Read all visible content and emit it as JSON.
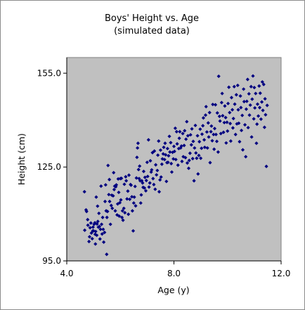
{
  "chart_data": {
    "type": "scatter",
    "title": "Boys' Height vs. Age",
    "subtitle": "(simulated data)",
    "xlabel": "Age (y)",
    "ylabel": "Height (cm)",
    "xlim": [
      4.0,
      12.0
    ],
    "ylim": [
      95.0,
      160.0
    ],
    "x_ticks": [
      {
        "value": 4.0,
        "label": "4.0"
      },
      {
        "value": 8.0,
        "label": "8.0"
      },
      {
        "value": 12.0,
        "label": "12.0"
      }
    ],
    "y_ticks": [
      {
        "value": 95.0,
        "label": "95.0"
      },
      {
        "value": 125.0,
        "label": "125.0"
      },
      {
        "value": 155.0,
        "label": "155.0"
      }
    ],
    "grid": false,
    "legend": "none",
    "colors": {
      "plot_background": "#c0c0c0",
      "marker": "#000080"
    },
    "series": [
      {
        "points": [
          [
            4.66,
            117.1
          ],
          [
            4.67,
            104.8
          ],
          [
            4.72,
            111.3
          ],
          [
            4.74,
            110.8
          ],
          [
            4.78,
            108.2
          ],
          [
            4.79,
            106.4
          ],
          [
            4.83,
            101.2
          ],
          [
            4.85,
            102.7
          ],
          [
            4.87,
            105.6
          ],
          [
            4.9,
            107.1
          ],
          [
            4.92,
            103.9
          ],
          [
            4.95,
            102.1
          ],
          [
            4.97,
            104.6
          ],
          [
            4.98,
            105.8
          ],
          [
            5.0,
            104.6
          ],
          [
            5.02,
            106.7
          ],
          [
            5.05,
            107.2
          ],
          [
            5.06,
            103.5
          ],
          [
            5.07,
            100.4
          ],
          [
            5.08,
            104.4
          ],
          [
            5.1,
            115.4
          ],
          [
            5.12,
            103.2
          ],
          [
            5.13,
            106.8
          ],
          [
            5.15,
            112.5
          ],
          [
            5.16,
            107.6
          ],
          [
            5.18,
            105.8
          ],
          [
            5.2,
            110.2
          ],
          [
            5.22,
            106.0
          ],
          [
            5.24,
            102.0
          ],
          [
            5.26,
            105.1
          ],
          [
            5.28,
            118.9
          ],
          [
            5.3,
            106.7
          ],
          [
            5.32,
            103.6
          ],
          [
            5.34,
            108.9
          ],
          [
            5.36,
            105.1
          ],
          [
            5.38,
            101.0
          ],
          [
            5.41,
            104.1
          ],
          [
            5.43,
            114.0
          ],
          [
            5.45,
            119.3
          ],
          [
            5.47,
            111.0
          ],
          [
            5.49,
            97.1
          ],
          [
            5.5,
            108.9
          ],
          [
            5.52,
            110.8
          ],
          [
            5.54,
            125.5
          ],
          [
            5.57,
            116.2
          ],
          [
            5.59,
            121.0
          ],
          [
            5.6,
            114.0
          ],
          [
            5.63,
            106.7
          ],
          [
            5.66,
            112.7
          ],
          [
            5.68,
            116.0
          ],
          [
            5.7,
            111.8
          ],
          [
            5.73,
            115.8
          ],
          [
            5.75,
            123.2
          ],
          [
            5.77,
            117.8
          ],
          [
            5.79,
            118.9
          ],
          [
            5.81,
            111.0
          ],
          [
            5.83,
            118.7
          ],
          [
            5.85,
            119.3
          ],
          [
            5.88,
            109.7
          ],
          [
            5.9,
            113.2
          ],
          [
            5.92,
            121.2
          ],
          [
            5.94,
            116.9
          ],
          [
            5.96,
            109.3
          ],
          [
            5.98,
            113.6
          ],
          [
            6.0,
            121.3
          ],
          [
            6.02,
            114.5
          ],
          [
            6.04,
            121.4
          ],
          [
            6.06,
            108.9
          ],
          [
            6.08,
            111.0
          ],
          [
            6.1,
            108.0
          ],
          [
            6.13,
            111.8
          ],
          [
            6.15,
            119.5
          ],
          [
            6.17,
            110.4
          ],
          [
            6.2,
            121.9
          ],
          [
            6.22,
            120.6
          ],
          [
            6.25,
            114.8
          ],
          [
            6.28,
            117.3
          ],
          [
            6.3,
            109.9
          ],
          [
            6.32,
            122.4
          ],
          [
            6.35,
            114.7
          ],
          [
            6.38,
            119.4
          ],
          [
            6.4,
            119.2
          ],
          [
            6.43,
            115.5
          ],
          [
            6.45,
            111.0
          ],
          [
            6.48,
            104.6
          ],
          [
            6.5,
            113.5
          ],
          [
            6.52,
            115.4
          ],
          [
            6.55,
            118.8
          ],
          [
            6.57,
            112.6
          ],
          [
            6.6,
            121.5
          ],
          [
            6.62,
            128.1
          ],
          [
            6.64,
            131.1
          ],
          [
            6.66,
            132.6
          ],
          [
            6.68,
            124.2
          ],
          [
            6.7,
            121.3
          ],
          [
            6.72,
            125.3
          ],
          [
            6.74,
            120.6
          ],
          [
            6.76,
            113.5
          ],
          [
            6.78,
            116.1
          ],
          [
            6.8,
            120.6
          ],
          [
            6.83,
            119.9
          ],
          [
            6.85,
            118.5
          ],
          [
            6.87,
            123.6
          ],
          [
            6.9,
            118.3
          ],
          [
            6.92,
            121.7
          ],
          [
            6.95,
            117.4
          ],
          [
            6.97,
            120.7
          ],
          [
            7.0,
            126.5
          ],
          [
            7.02,
            122.0
          ],
          [
            7.05,
            133.7
          ],
          [
            7.07,
            118.6
          ],
          [
            7.1,
            119.9
          ],
          [
            7.12,
            127.0
          ],
          [
            7.15,
            123.4
          ],
          [
            7.17,
            124.1
          ],
          [
            7.2,
            129.6
          ],
          [
            7.22,
            121.3
          ],
          [
            7.25,
            119.4
          ],
          [
            7.27,
            130.1
          ],
          [
            7.3,
            117.9
          ],
          [
            7.32,
            125.7
          ],
          [
            7.35,
            122.5
          ],
          [
            7.38,
            123.9
          ],
          [
            7.4,
            128.8
          ],
          [
            7.43,
            133.3
          ],
          [
            7.45,
            117.1
          ],
          [
            7.48,
            120.9
          ],
          [
            7.5,
            130.4
          ],
          [
            7.52,
            121.8
          ],
          [
            7.55,
            125.9
          ],
          [
            7.57,
            127.6
          ],
          [
            7.6,
            129.2
          ],
          [
            7.62,
            131.3
          ],
          [
            7.65,
            127.4
          ],
          [
            7.67,
            132.6
          ],
          [
            7.69,
            128.9
          ],
          [
            7.72,
            120.4
          ],
          [
            7.74,
            126.4
          ],
          [
            7.76,
            130.9
          ],
          [
            7.78,
            126.5
          ],
          [
            7.8,
            128.6
          ],
          [
            7.83,
            134.8
          ],
          [
            7.85,
            129.8
          ],
          [
            7.88,
            132.8
          ],
          [
            7.9,
            126.1
          ],
          [
            7.92,
            123.4
          ],
          [
            7.95,
            129.7
          ],
          [
            7.98,
            127.6
          ],
          [
            8.0,
            131.6
          ],
          [
            8.02,
            130.0
          ],
          [
            8.05,
            137.4
          ],
          [
            8.07,
            127.4
          ],
          [
            8.1,
            136.3
          ],
          [
            8.12,
            132.4
          ],
          [
            8.15,
            125.6
          ],
          [
            8.18,
            130.9
          ],
          [
            8.2,
            134.2
          ],
          [
            8.22,
            136.3
          ],
          [
            8.25,
            131.1
          ],
          [
            8.28,
            131.7
          ],
          [
            8.3,
            126.8
          ],
          [
            8.33,
            135.7
          ],
          [
            8.35,
            128.3
          ],
          [
            8.38,
            131.9
          ],
          [
            8.4,
            136.6
          ],
          [
            8.43,
            128.0
          ],
          [
            8.45,
            133.9
          ],
          [
            8.48,
            139.5
          ],
          [
            8.5,
            126.3
          ],
          [
            8.52,
            135.0
          ],
          [
            8.55,
            124.6
          ],
          [
            8.57,
            127.1
          ],
          [
            8.6,
            129.4
          ],
          [
            8.62,
            135.3
          ],
          [
            8.65,
            132.1
          ],
          [
            8.67,
            137.2
          ],
          [
            8.7,
            127.7
          ],
          [
            8.72,
            133.2
          ],
          [
            8.75,
            120.6
          ],
          [
            8.77,
            131.1
          ],
          [
            8.8,
            138.3
          ],
          [
            8.82,
            129.5
          ],
          [
            8.85,
            127.8
          ],
          [
            8.88,
            135.0
          ],
          [
            8.9,
            122.8
          ],
          [
            8.93,
            128.7
          ],
          [
            8.95,
            133.1
          ],
          [
            8.98,
            137.1
          ],
          [
            9.0,
            127.8
          ],
          [
            9.03,
            131.0
          ],
          [
            9.05,
            135.5
          ],
          [
            9.08,
            138.2
          ],
          [
            9.1,
            140.7
          ],
          [
            9.13,
            133.7
          ],
          [
            9.15,
            131.3
          ],
          [
            9.18,
            141.6
          ],
          [
            9.2,
            144.3
          ],
          [
            9.23,
            136.2
          ],
          [
            9.25,
            131.1
          ],
          [
            9.28,
            139.1
          ],
          [
            9.3,
            134.6
          ],
          [
            9.33,
            142.4
          ],
          [
            9.35,
            126.4
          ],
          [
            9.38,
            136.3
          ],
          [
            9.4,
            138.1
          ],
          [
            9.43,
            133.4
          ],
          [
            9.45,
            145.0
          ],
          [
            9.48,
            135.4
          ],
          [
            9.5,
            130.7
          ],
          [
            9.52,
            137.3
          ],
          [
            9.55,
            144.9
          ],
          [
            9.57,
            135.4
          ],
          [
            9.6,
            133.2
          ],
          [
            9.62,
            142.3
          ],
          [
            9.65,
            129.8
          ],
          [
            9.67,
            154.0
          ],
          [
            9.7,
            141.2
          ],
          [
            9.72,
            139.7
          ],
          [
            9.75,
            135.7
          ],
          [
            9.78,
            145.6
          ],
          [
            9.8,
            148.5
          ],
          [
            9.82,
            141.4
          ],
          [
            9.85,
            136.1
          ],
          [
            9.88,
            139.2
          ],
          [
            9.9,
            144.5
          ],
          [
            9.93,
            140.8
          ],
          [
            9.95,
            132.7
          ],
          [
            9.98,
            139.3
          ],
          [
            10.0,
            136.5
          ],
          [
            10.02,
            145.3
          ],
          [
            10.05,
            150.5
          ],
          [
            10.08,
            142.4
          ],
          [
            10.1,
            138.9
          ],
          [
            10.12,
            133.3
          ],
          [
            10.15,
            147.2
          ],
          [
            10.18,
            143.3
          ],
          [
            10.2,
            137.5
          ],
          [
            10.22,
            140.5
          ],
          [
            10.25,
            150.7
          ],
          [
            10.27,
            145.1
          ],
          [
            10.3,
            135.4
          ],
          [
            10.33,
            148.1
          ],
          [
            10.35,
            138.8
          ],
          [
            10.38,
            151.1
          ],
          [
            10.4,
            143.3
          ],
          [
            10.42,
            139.0
          ],
          [
            10.45,
            133.1
          ],
          [
            10.48,
            147.7
          ],
          [
            10.5,
            144.0
          ],
          [
            10.52,
            136.7
          ],
          [
            10.55,
            141.5
          ],
          [
            10.57,
            130.5
          ],
          [
            10.6,
            149.9
          ],
          [
            10.62,
            145.9
          ],
          [
            10.65,
            138.5
          ],
          [
            10.68,
            128.3
          ],
          [
            10.7,
            143.5
          ],
          [
            10.72,
            146.0
          ],
          [
            10.75,
            153.0
          ],
          [
            10.77,
            137.6
          ],
          [
            10.8,
            148.4
          ],
          [
            10.82,
            141.6
          ],
          [
            10.85,
            144.8
          ],
          [
            10.88,
            150.7
          ],
          [
            10.9,
            134.6
          ],
          [
            10.92,
            146.7
          ],
          [
            10.95,
            154.1
          ],
          [
            10.98,
            140.4
          ],
          [
            11.0,
            150.4
          ],
          [
            11.02,
            143.9
          ],
          [
            11.05,
            148.5
          ],
          [
            11.08,
            132.6
          ],
          [
            11.1,
            138.7
          ],
          [
            11.12,
            145.1
          ],
          [
            11.15,
            141.3
          ],
          [
            11.18,
            150.9
          ],
          [
            11.2,
            144.0
          ],
          [
            11.22,
            148.6
          ],
          [
            11.25,
            140.3
          ],
          [
            11.28,
            145.8
          ],
          [
            11.3,
            152.2
          ],
          [
            11.32,
            143.1
          ],
          [
            11.35,
            151.4
          ],
          [
            11.38,
            137.7
          ],
          [
            11.4,
            146.8
          ],
          [
            11.42,
            141.7
          ],
          [
            11.45,
            125.2
          ],
          [
            11.48,
            144.7
          ]
        ]
      }
    ]
  }
}
